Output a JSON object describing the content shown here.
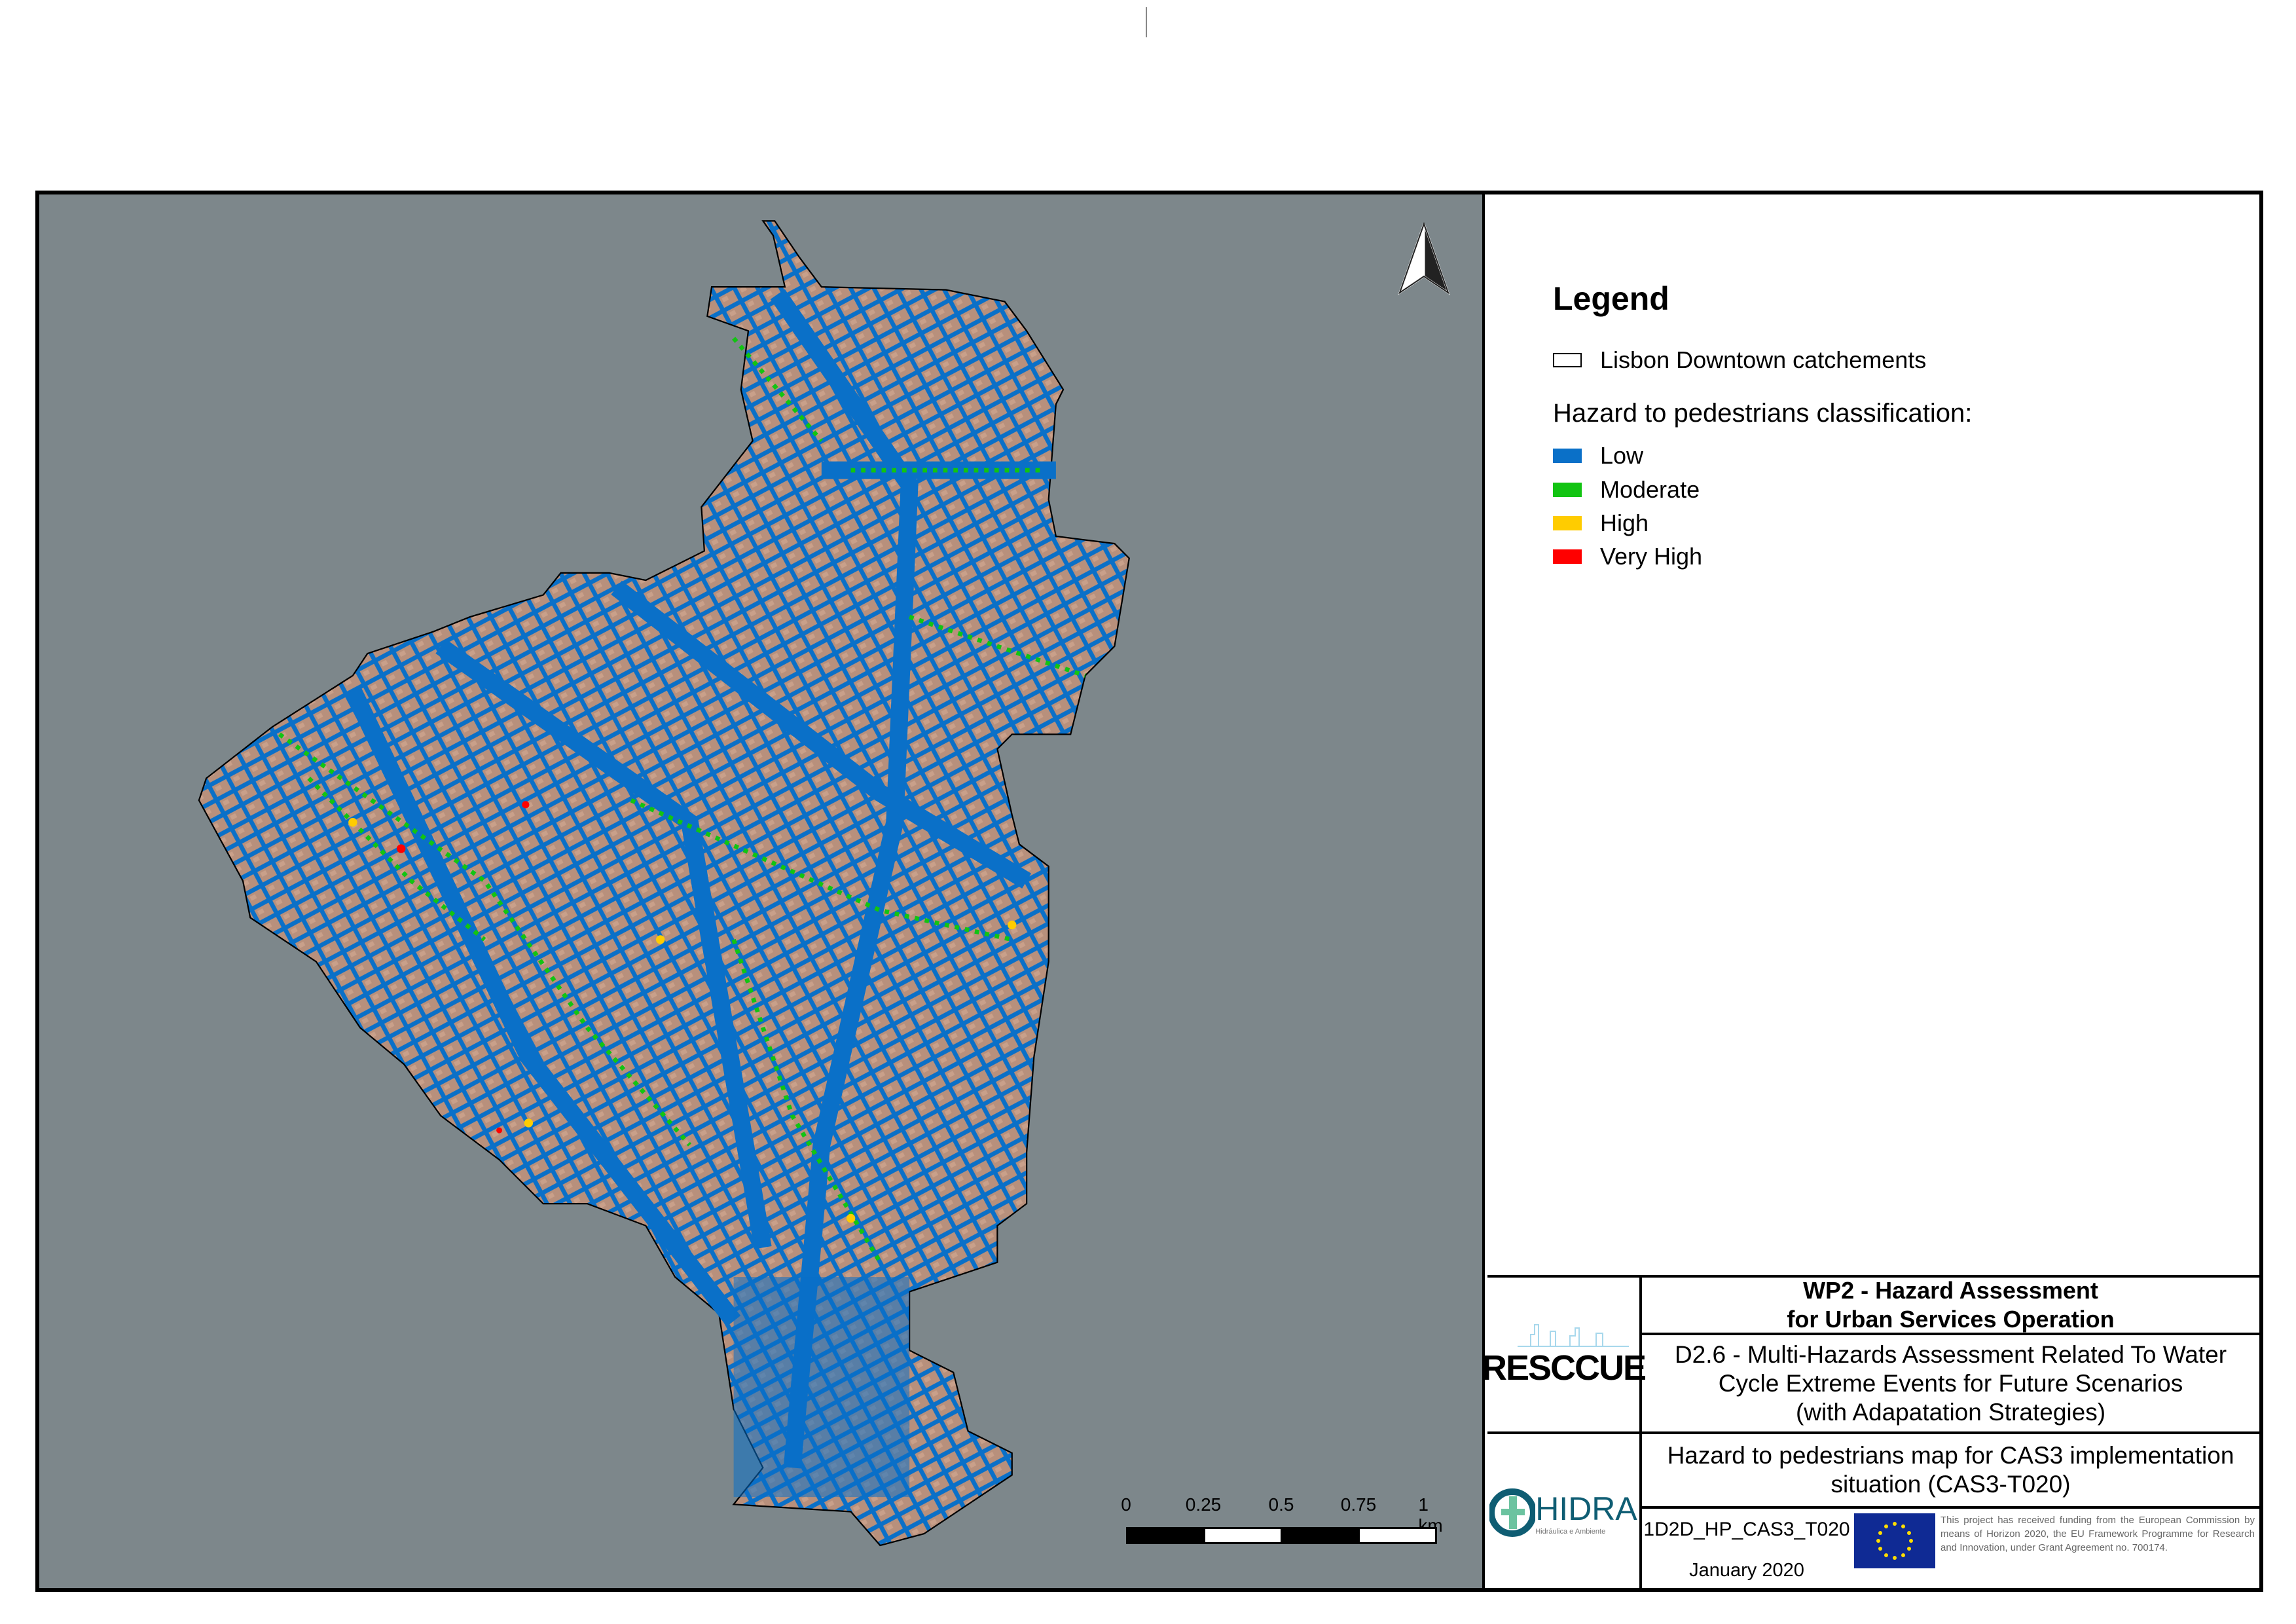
{
  "legend": {
    "title": "Legend",
    "catchment_label": "Lisbon Downtown catchements",
    "hazard_heading": "Hazard to pedestrians classification:",
    "classes": [
      {
        "label": "Low",
        "color": "#0a70c8"
      },
      {
        "label": "Moderate",
        "color": "#12c412"
      },
      {
        "label": "High",
        "color": "#ffcc00"
      },
      {
        "label": "Very High",
        "color": "#ff0000"
      }
    ]
  },
  "scale_bar": {
    "labels": [
      "0",
      "0.25",
      "0.5",
      "0.75",
      "1 km"
    ]
  },
  "north_arrow": {
    "icon": "north-arrow-icon"
  },
  "title_block": {
    "work_package": "WP2 - Hazard Assessment",
    "work_package_line2": "for Urban Services Operation",
    "deliverable_line1": "D2.6 - Multi-Hazards Assessment Related To Water",
    "deliverable_line2": "Cycle Extreme Events for Future Scenarios",
    "deliverable_line3": "(with Adapatation Strategies)",
    "map_title_line1": "Hazard to pedestrians map for CAS3 implementation",
    "map_title_line2": "situation (CAS3-T020)",
    "map_code": "1D2D_HP_CAS3_T020",
    "date": "January 2020",
    "funding_text": "This project has received funding from the European Commission by means of Horizon 2020, the EU Framework Programme for Research and Innovation, under Grant Agreement no. 700174.",
    "logo_rescue": "RESCCUE",
    "logo_hidra": "HIDRA",
    "logo_hidra_sub": "Hidráulica e Ambiente"
  },
  "colors": {
    "map_background": "#7d878b",
    "urban": "#b8907c",
    "eu_blue": "#0f2a94",
    "eu_star": "#ffdd00"
  }
}
